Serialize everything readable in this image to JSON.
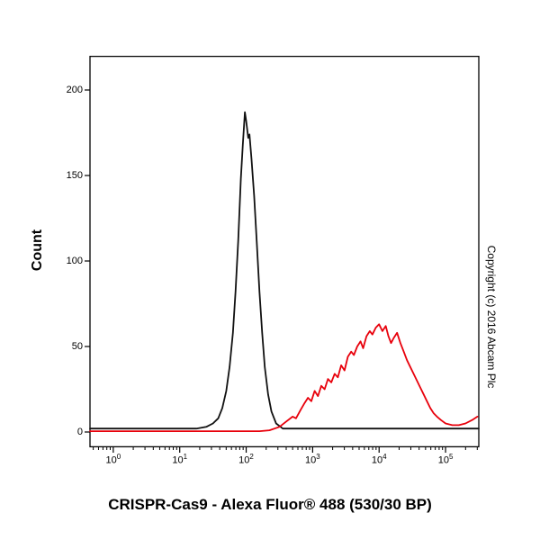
{
  "title": "CRISPR-Cas9 - Alexa Fluor® 488 (530/30 BP)",
  "ylabel": "Count",
  "copyright": "Copyright (c) 2016 Abcam Plc",
  "chart_data": {
    "type": "line",
    "subtype": "flow-cytometry-histogram",
    "title": "CRISPR-Cas9 - Alexa Fluor® 488 (530/30 BP)",
    "xlabel": "",
    "ylabel": "Count",
    "x_scale": "log",
    "x_domain_log10": [
      -0.35,
      5.5
    ],
    "x_ticks_exponents": [
      0,
      1,
      2,
      3,
      4,
      5
    ],
    "y_ticks": [
      0,
      50,
      100,
      150,
      200
    ],
    "ylim": [
      0,
      220
    ],
    "grid": false,
    "legend": "none",
    "series": [
      {
        "id": "black-curve",
        "color": "#111111",
        "peak_x_log10": 1.98,
        "peak_count": 187,
        "points": [
          [
            -0.35,
            2
          ],
          [
            1.25,
            2
          ],
          [
            1.4,
            3
          ],
          [
            1.5,
            5
          ],
          [
            1.58,
            8
          ],
          [
            1.64,
            14
          ],
          [
            1.7,
            24
          ],
          [
            1.75,
            38
          ],
          [
            1.8,
            58
          ],
          [
            1.84,
            82
          ],
          [
            1.88,
            112
          ],
          [
            1.92,
            148
          ],
          [
            1.95,
            168
          ],
          [
            1.98,
            187
          ],
          [
            2.0,
            182
          ],
          [
            2.03,
            172
          ],
          [
            2.05,
            174
          ],
          [
            2.08,
            160
          ],
          [
            2.12,
            138
          ],
          [
            2.16,
            110
          ],
          [
            2.2,
            82
          ],
          [
            2.24,
            58
          ],
          [
            2.28,
            38
          ],
          [
            2.33,
            22
          ],
          [
            2.38,
            12
          ],
          [
            2.45,
            5
          ],
          [
            2.55,
            2
          ],
          [
            2.7,
            2
          ],
          [
            5.5,
            2
          ]
        ]
      },
      {
        "id": "red-curve",
        "color": "#e8000b",
        "peak_x_log10": 4.0,
        "peak_count": 63,
        "points": [
          [
            -0.35,
            0.5
          ],
          [
            2.2,
            0.5
          ],
          [
            2.35,
            1
          ],
          [
            2.5,
            3
          ],
          [
            2.6,
            6
          ],
          [
            2.7,
            9
          ],
          [
            2.75,
            8
          ],
          [
            2.82,
            13
          ],
          [
            2.88,
            17
          ],
          [
            2.93,
            20
          ],
          [
            2.98,
            18
          ],
          [
            3.03,
            24
          ],
          [
            3.08,
            21
          ],
          [
            3.13,
            27
          ],
          [
            3.18,
            25
          ],
          [
            3.23,
            31
          ],
          [
            3.28,
            29
          ],
          [
            3.33,
            34
          ],
          [
            3.38,
            32
          ],
          [
            3.43,
            39
          ],
          [
            3.48,
            36
          ],
          [
            3.53,
            44
          ],
          [
            3.58,
            47
          ],
          [
            3.62,
            45
          ],
          [
            3.67,
            50
          ],
          [
            3.72,
            53
          ],
          [
            3.76,
            49
          ],
          [
            3.81,
            56
          ],
          [
            3.86,
            59
          ],
          [
            3.9,
            57
          ],
          [
            3.95,
            61
          ],
          [
            4.0,
            63
          ],
          [
            4.05,
            59
          ],
          [
            4.1,
            62
          ],
          [
            4.14,
            56
          ],
          [
            4.18,
            52
          ],
          [
            4.22,
            55
          ],
          [
            4.27,
            58
          ],
          [
            4.32,
            52
          ],
          [
            4.37,
            47
          ],
          [
            4.42,
            42
          ],
          [
            4.47,
            38
          ],
          [
            4.52,
            34
          ],
          [
            4.57,
            30
          ],
          [
            4.62,
            26
          ],
          [
            4.67,
            22
          ],
          [
            4.72,
            18
          ],
          [
            4.77,
            14
          ],
          [
            4.82,
            11
          ],
          [
            4.87,
            9
          ],
          [
            4.93,
            7
          ],
          [
            5.0,
            5
          ],
          [
            5.1,
            4
          ],
          [
            5.2,
            4
          ],
          [
            5.3,
            5
          ],
          [
            5.4,
            7
          ],
          [
            5.48,
            9
          ]
        ]
      }
    ]
  }
}
